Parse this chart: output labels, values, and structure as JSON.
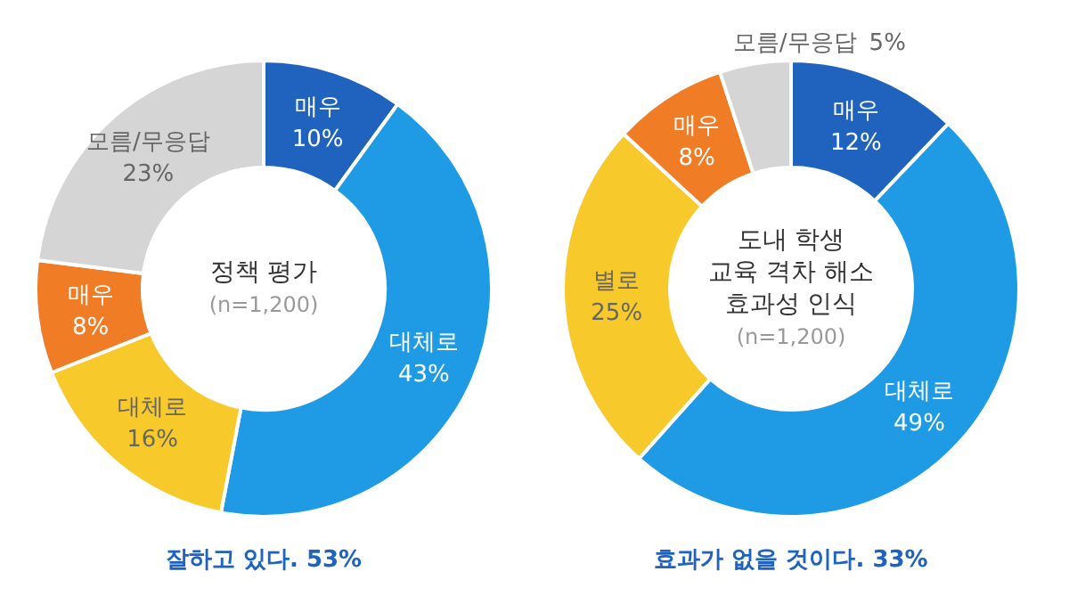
{
  "chart_data": [
    {
      "type": "donut",
      "title": "정책 평가",
      "subtitle": "(n=1,200)",
      "categories": [
        "매우",
        "대체로",
        "대체로",
        "매우",
        "모름/무응답"
      ],
      "values": [
        10,
        43,
        16,
        8,
        23
      ],
      "value_labels": [
        "10%",
        "43%",
        "16%",
        "8%",
        "23%"
      ],
      "colors": [
        "#1f63be",
        "#1f9be6",
        "#f8c92a",
        "#f07c26",
        "#d5d5d5"
      ],
      "annotations": [
        "잘하고 있다. 53%"
      ]
    },
    {
      "type": "donut",
      "title": "도내 학생\n교육 격차 해소\n효과성 인식",
      "subtitle": "(n=1,200)",
      "categories": [
        "매우",
        "대체로",
        "별로",
        "매우",
        "모름/무응답"
      ],
      "values": [
        12,
        49,
        25,
        8,
        5
      ],
      "value_labels": [
        "12%",
        "49%",
        "25%",
        "8%",
        "5%"
      ],
      "colors": [
        "#1f63be",
        "#1f9be6",
        "#f8c92a",
        "#f07c26",
        "#d5d5d5"
      ],
      "annotations": [
        "효과가 없을 것이다. 33%"
      ]
    }
  ]
}
